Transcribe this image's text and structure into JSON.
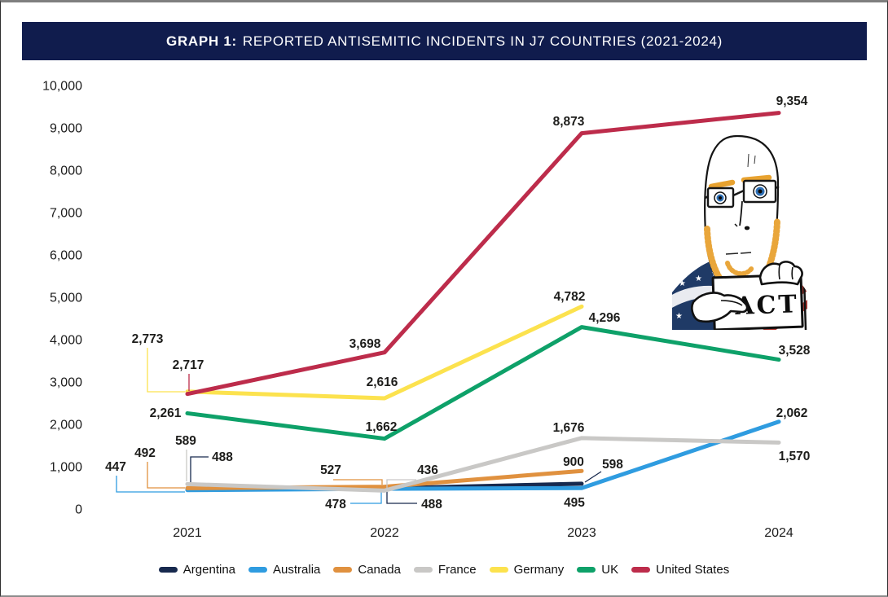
{
  "header": {
    "label": "GRAPH 1:",
    "title": "REPORTED ANTISEMITIC INCIDENTS IN J7 COUNTRIES (2021-2024)",
    "bar_color": "#101c4d",
    "text_color": "#ffffff"
  },
  "chart_data": {
    "type": "line",
    "title": "GRAPH 1: REPORTED ANTISEMITIC INCIDENTS IN J7 COUNTRIES (2021-2024)",
    "categories": [
      "2021",
      "2022",
      "2023",
      "2024"
    ],
    "xlabel": "",
    "ylabel": "",
    "ylim": [
      0,
      10000
    ],
    "ytick_step": 1000,
    "grid": false,
    "legend_position": "bottom",
    "series": [
      {
        "name": "Argentina",
        "color": "#17294e",
        "values": [
          488,
          488,
          598,
          null
        ]
      },
      {
        "name": "Australia",
        "color": "#2f9ce0",
        "values": [
          447,
          478,
          495,
          2062
        ]
      },
      {
        "name": "Canada",
        "color": "#e0913f",
        "values": [
          492,
          527,
          900,
          null
        ]
      },
      {
        "name": "France",
        "color": "#c9c8c6",
        "values": [
          589,
          436,
          1676,
          1570
        ]
      },
      {
        "name": "Germany",
        "color": "#fce24e",
        "values": [
          2773,
          2616,
          4782,
          null
        ]
      },
      {
        "name": "UK",
        "color": "#0ea169",
        "values": [
          2261,
          1662,
          4296,
          3528
        ]
      },
      {
        "name": "United States",
        "color": "#bd2c4b",
        "values": [
          2717,
          3698,
          8873,
          9354
        ]
      }
    ]
  },
  "meme": {
    "name": "american-soyjak-holding-fact-sign",
    "sign_text": "FACT"
  }
}
